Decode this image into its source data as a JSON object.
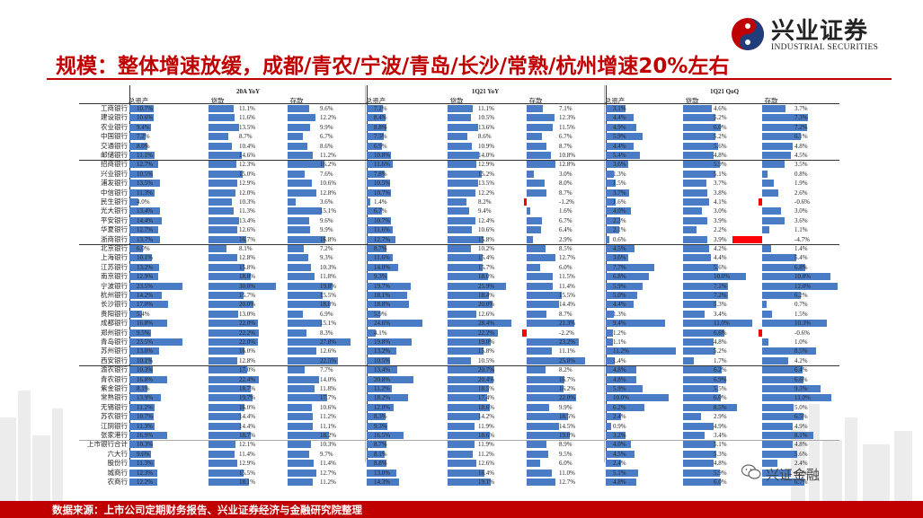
{
  "title": "规模：整体增速放缓，成都/青农/宁波/青岛/长沙/常熟/杭州增速20%左右",
  "logo": {
    "name": "兴业证券",
    "sub": "INDUSTRIAL SECURITIES"
  },
  "source": "数据来源：上市公司定期财务报告、兴业证券经济与金融研究院整理",
  "watermark": "兴证金融",
  "groups": [
    "20A YoY",
    "1Q21 YoY",
    "1Q21 QoQ"
  ],
  "subheaders": [
    "总资产",
    "贷款",
    "存款"
  ],
  "colors": {
    "bar": "#4a7cc5",
    "negative": "#ff0000",
    "accent": "#c00000"
  },
  "rows": [
    {
      "bank": "工商银行",
      "v": [
        "10.7%",
        "11.1%",
        "9.6%",
        "7.1%",
        "11.1%",
        "7.1%",
        "3.1%",
        "4.6%",
        "3.7%"
      ]
    },
    {
      "bank": "建设银行",
      "v": [
        "10.6%",
        "11.6%",
        "12.2%",
        "8.4%",
        "10.5%",
        "12.3%",
        "4.4%",
        "5.2%",
        "7.3%"
      ]
    },
    {
      "bank": "农业银行",
      "v": [
        "9.4%",
        "13.5%",
        "9.9%",
        "8.8%",
        "13.6%",
        "11.5%",
        "4.9%",
        "6.0%",
        "7.2%"
      ]
    },
    {
      "bank": "中国银行",
      "v": [
        "7.2%",
        "8.7%",
        "6.7%",
        "7.5%",
        "8.6%",
        "6.7%",
        "5.9%",
        "5.2%",
        "6.1%"
      ]
    },
    {
      "bank": "交通银行",
      "v": [
        "8.0%",
        "10.4%",
        "8.6%",
        "6.9%",
        "10.9%",
        "8.7%",
        "4.4%",
        "5.6%",
        "4.8%"
      ]
    },
    {
      "bank": "邮储银行",
      "v": [
        "11.1%",
        "14.6%",
        "11.2%",
        "10.8%",
        "14.0%",
        "10.8%",
        "5.4%",
        "4.8%",
        "4.5%"
      ]
    },
    {
      "bank": "招商银行",
      "v": [
        "12.7%",
        "12.3%",
        "16.2%",
        "11.6%",
        "12.9%",
        "12.8%",
        "3.6%",
        "5.9%",
        "3.5%"
      ]
    },
    {
      "bank": "兴业银行",
      "v": [
        "10.5%",
        "15.0%",
        "7.6%",
        "7.8%",
        "15.2%",
        "3.0%",
        "1.3%",
        "5.1%",
        "0.8%"
      ]
    },
    {
      "bank": "浦发银行",
      "v": [
        "13.5%",
        "12.9%",
        "10.6%",
        "10.5%",
        "13.5%",
        "8.0%",
        "1.5%",
        "3.7%",
        "1.9%"
      ]
    },
    {
      "bank": "中信银行",
      "v": [
        "11.3%",
        "12.0%",
        "12.8%",
        "10.7%",
        "12.2%",
        "8.7%",
        "3.7%",
        "3.8%",
        "2.6%"
      ]
    },
    {
      "bank": "民生银行",
      "v": [
        "4.0%",
        "10.3%",
        "3.6%",
        "1.4%",
        "8.2%",
        "-1.2%",
        "1.6%",
        "4.1%",
        "-0.6%"
      ]
    },
    {
      "bank": "光大银行",
      "v": [
        "13.4%",
        "11.3%",
        "15.1%",
        "6.7%",
        "9.4%",
        "1.6%",
        "4.0%",
        "3.0%",
        "3.0%"
      ]
    },
    {
      "bank": "平安银行",
      "v": [
        "14.4%",
        "13.4%",
        "9.6%",
        "10.7%",
        "12.4%",
        "6.7%",
        "2.3%",
        "3.9%",
        "3.6%"
      ]
    },
    {
      "bank": "华夏银行",
      "v": [
        "12.7%",
        "12.6%",
        "9.9%",
        "11.6%",
        "10.6%",
        "6.4%",
        "2.1%",
        "2.2%",
        "1.1%"
      ]
    },
    {
      "bank": "浙商银行",
      "v": [
        "13.7%",
        "16.7%",
        "16.8%",
        "12.7%",
        "15.8%",
        "2.9%",
        "0.6%",
        "3.9%",
        "-4.7%"
      ]
    },
    {
      "bank": "北京银行",
      "v": [
        "6.0%",
        "8.1%",
        "7.2%",
        "8.7%",
        "10.2%",
        "8.5%",
        "4.5%",
        "4.2%",
        "1.4%"
      ]
    },
    {
      "bank": "上海银行",
      "v": [
        "10.1%",
        "12.8%",
        "9.3%",
        "11.6%",
        "15.4%",
        "12.7%",
        "3.6%",
        "4.4%",
        "5.4%"
      ]
    },
    {
      "bank": "江苏银行",
      "v": [
        "13.2%",
        "15.8%",
        "10.3%",
        "14.0%",
        "15.7%",
        "6.0%",
        "7.7%",
        "5.6%",
        "6.8%"
      ]
    },
    {
      "bank": "南京银行",
      "v": [
        "12.9%",
        "18.8%",
        "11.8%",
        "9.3%",
        "18.0%",
        "11.5%",
        "6.8%",
        "10.0%",
        "10.8%"
      ]
    },
    {
      "bank": "宁波银行",
      "v": [
        "23.5%",
        "30.0%",
        "19.8%",
        "19.7%",
        "25.9%",
        "11.4%",
        "5.9%",
        "7.1%",
        "12.0%"
      ]
    },
    {
      "bank": "杭州银行",
      "v": [
        "14.2%",
        "15.7%",
        "15.5%",
        "18.1%",
        "18.4%",
        "15.5%",
        "5.0%",
        "7.2%",
        "6.2%"
      ]
    },
    {
      "bank": "长沙银行",
      "v": [
        "17.0%",
        "20.0%",
        "18.8%",
        "18.8%",
        "20.0%",
        "14.4%",
        "4.4%",
        "5.3%",
        "0.7%"
      ]
    },
    {
      "bank": "贵阳银行",
      "v": [
        "5.4%",
        "13.0%",
        "6.9%",
        "5.9%",
        "12.6%",
        "8.7%",
        "1.3%",
        "3.4%",
        "1.5%"
      ]
    },
    {
      "bank": "成都银行",
      "v": [
        "16.8%",
        "22.0%",
        "15.1%",
        "24.6%",
        "28.4%",
        "21.3%",
        "9.4%",
        "11.0%",
        "10.3%"
      ]
    },
    {
      "bank": "郑州银行",
      "v": [
        "9.5%",
        "22.2%",
        "8.3%",
        "4.1%",
        "22.2%",
        "-2.2%",
        "1.2%",
        "6.6%",
        "-0.6%"
      ]
    },
    {
      "bank": "青岛银行",
      "v": [
        "23.5%",
        "22.0%",
        "27.8%",
        "19.8%",
        "19.0%",
        "23.2%",
        "1.1%",
        "4.8%",
        "1.0%"
      ]
    },
    {
      "bank": "苏州银行",
      "v": [
        "13.0%",
        "16.0%",
        "12.6%",
        "13.2%",
        "15.8%",
        "11.1%",
        "11.2%",
        "5.2%",
        "8.5%"
      ]
    },
    {
      "bank": "西安银行",
      "v": [
        "10.1%",
        "12.8%",
        "22.5%",
        "10.5%",
        "10.5%",
        "25.8%",
        "1.4%",
        "1.7%",
        "4.2%"
      ]
    },
    {
      "bank": "渝农银行",
      "v": [
        "10.3%",
        "17.0%",
        "7.7%",
        "13.4%",
        "20.7%",
        "8.2%",
        "4.8%",
        "6.2%",
        "6.4%"
      ]
    },
    {
      "bank": "青农银行",
      "v": [
        "16.8%",
        "22.4%",
        "14.0%",
        "20.8%",
        "20.4%",
        "16.7%",
        "4.8%",
        "6.9%",
        "6.6%"
      ]
    },
    {
      "bank": "紫金银行",
      "v": [
        "8.1%",
        "18.7%",
        "11.8%",
        "11.2%",
        "18.5%",
        "16.2%",
        "5.9%",
        "5.5%",
        "9.3%"
      ]
    },
    {
      "bank": "常熟银行",
      "v": [
        "13.9%",
        "19.7%",
        "17.7%",
        "18.2%",
        "17.4%",
        "22.0%",
        "10.0%",
        "6.0%",
        "11.0%"
      ]
    },
    {
      "bank": "无锡银行",
      "v": [
        "11.2%",
        "16.0%",
        "10.6%",
        "12.0%",
        "18.6%",
        "9.9%",
        "6.2%",
        "8.5%",
        "5.0%"
      ]
    },
    {
      "bank": "苏农银行",
      "v": [
        "10.7%",
        "14.4%",
        "11.2%",
        "8.3%",
        "14.2%",
        "18.5%",
        "2.4%",
        "2.9%",
        "6.5%"
      ]
    },
    {
      "bank": "江阴银行",
      "v": [
        "11.3%",
        "14.4%",
        "11.1%",
        "9.3%",
        "11.9%",
        "14.5%",
        "0.9%",
        "4.9%",
        "4.9%"
      ]
    },
    {
      "bank": "张家港行",
      "v": [
        "16.9%",
        "18.7%",
        "18.2%",
        "16.5%",
        "18.6%",
        "19.0%",
        "3.2%",
        "3.4%",
        "8.1%"
      ]
    },
    {
      "bank": "上市银行合计",
      "v": [
        "10.3%",
        "12.1%",
        "10.3%",
        "8.7%",
        "11.9%",
        "8.9%",
        "4.0%",
        "5.1%",
        "4.8%"
      ]
    },
    {
      "bank": "六大行",
      "v": [
        "9.6%",
        "11.4%",
        "9.7%",
        "8.1%",
        "11.2%",
        "9.5%",
        "4.5%",
        "5.3%",
        "5.6%"
      ]
    },
    {
      "bank": "股份行",
      "v": [
        "11.3%",
        "12.9%",
        "11.4%",
        "8.8%",
        "12.6%",
        "6.0%",
        "2.4%",
        "4.8%",
        "2.4%"
      ]
    },
    {
      "bank": "城商行",
      "v": [
        "12.3%",
        "15.5%",
        "12.7%",
        "13.0%",
        "16.4%",
        "11.0%",
        "5.1%",
        "5.9%",
        "4.5%"
      ]
    },
    {
      "bank": "农商行",
      "v": [
        "12.2%",
        "18.1%",
        "11.2%",
        "14.3%",
        "19.1%",
        "12.7%",
        "4.8%",
        "6.0%",
        "6.7%"
      ]
    }
  ]
}
